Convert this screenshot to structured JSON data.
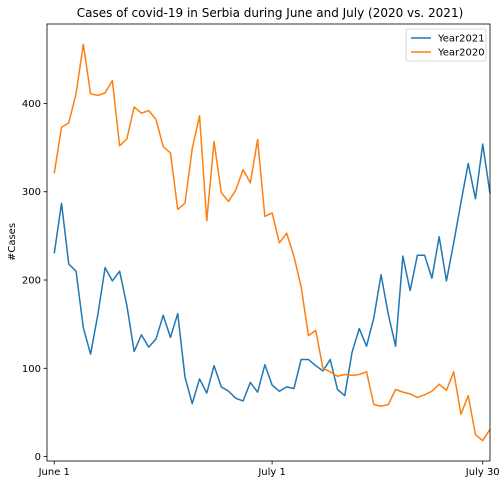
{
  "chart_data": {
    "type": "line",
    "title": "Cases of covid-19 in Serbia during June and July (2020 vs. 2021)",
    "xlabel": "",
    "ylabel": "#Cases",
    "x_ticks": [
      {
        "label": "June 1",
        "day": 1
      },
      {
        "label": "July 1",
        "day": 31
      },
      {
        "label": "July 30",
        "day": 60
      }
    ],
    "xlim": [
      0,
      61
    ],
    "y_ticks": [
      0,
      100,
      200,
      300,
      400
    ],
    "ylim": [
      -5,
      490
    ],
    "legend_position": "top-right",
    "grid": false,
    "series": [
      {
        "name": "Year2021",
        "color": "#1f77b4",
        "values": [
          230,
          287,
          218,
          210,
          146,
          116,
          161,
          214,
          199,
          210,
          171,
          119,
          138,
          124,
          133,
          160,
          135,
          162,
          90,
          60,
          88,
          72,
          103,
          79,
          74,
          66,
          63,
          84,
          73,
          104,
          81,
          74,
          79,
          77,
          110,
          110,
          103,
          97,
          110,
          76,
          69,
          118,
          145,
          125,
          157,
          206,
          161,
          125,
          227,
          188,
          228,
          228,
          202,
          249,
          199,
          242,
          288,
          332,
          292,
          354,
          298
        ]
      },
      {
        "name": "Year2020",
        "color": "#ff7f0e",
        "values": [
          321,
          373,
          378,
          411,
          467,
          411,
          409,
          412,
          426,
          352,
          360,
          396,
          389,
          392,
          382,
          351,
          344,
          280,
          287,
          349,
          386,
          267,
          357,
          299,
          289,
          302,
          325,
          310,
          359,
          272,
          276,
          242,
          253,
          227,
          192,
          137,
          143,
          100,
          96,
          91,
          93,
          92,
          93,
          96,
          59,
          57,
          59,
          76,
          73,
          71,
          67,
          70,
          74,
          82,
          75,
          96,
          48,
          69,
          25,
          18,
          31
        ]
      }
    ]
  }
}
